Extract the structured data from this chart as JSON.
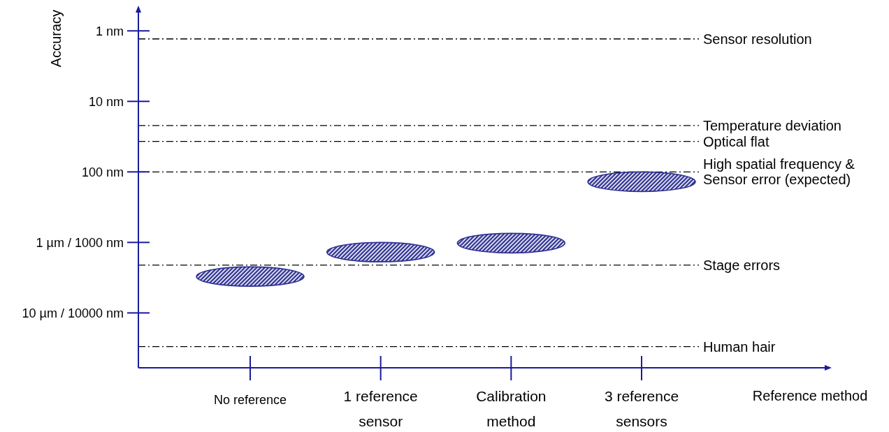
{
  "chart_data": {
    "xlabel": "Reference method",
    "ylabel": "Accuracy",
    "categories": [
      "No reference",
      "1 reference\nsensor",
      "Calibration\nmethod",
      "3 reference\nsensors"
    ],
    "type": "bar",
    "series": [
      {
        "color": "#2e3192",
        "base": [
          2220,
          1000,
          740,
          100
        ],
        "values": [
          1980,
          890,
          670,
          90
        ]
      }
    ],
    "log": "y",
    "ylim": [
      60000,
      0.55
    ],
    "yticks": [
      {
        "value": 1,
        "label": "1 nm"
      },
      {
        "value": 10,
        "label": "10 nm"
      },
      {
        "value": 100,
        "label": "100 nm"
      },
      {
        "value": 1000,
        "label": "1 µm / 1000 nm"
      },
      {
        "value": 10000,
        "label": "10 µm / 10000 nm"
      }
    ],
    "ref_lines": [
      {
        "axis": "y",
        "value": 1.3,
        "label": "Sensor resolution",
        "line_style": "dashed",
        "color": "#000000"
      },
      {
        "axis": "y",
        "value": 22,
        "label": "Temperature deviation",
        "line_style": "dashed",
        "color": "#000000"
      },
      {
        "axis": "y",
        "value": 37,
        "label": "Optical flat",
        "line_style": "dashed",
        "color": "#000000"
      },
      {
        "axis": "y",
        "value": 100,
        "label": "High spatial frequency &\nSensor error (expected)",
        "line_style": "dashed",
        "color": "#000000"
      },
      {
        "axis": "y",
        "value": 2100,
        "label": "Stage errors",
        "line_style": "dashed",
        "color": "#000000"
      },
      {
        "axis": "y",
        "value": 30000,
        "label": "Human hair",
        "line_style": "dashed",
        "color": "#000000"
      }
    ],
    "grid": false
  }
}
